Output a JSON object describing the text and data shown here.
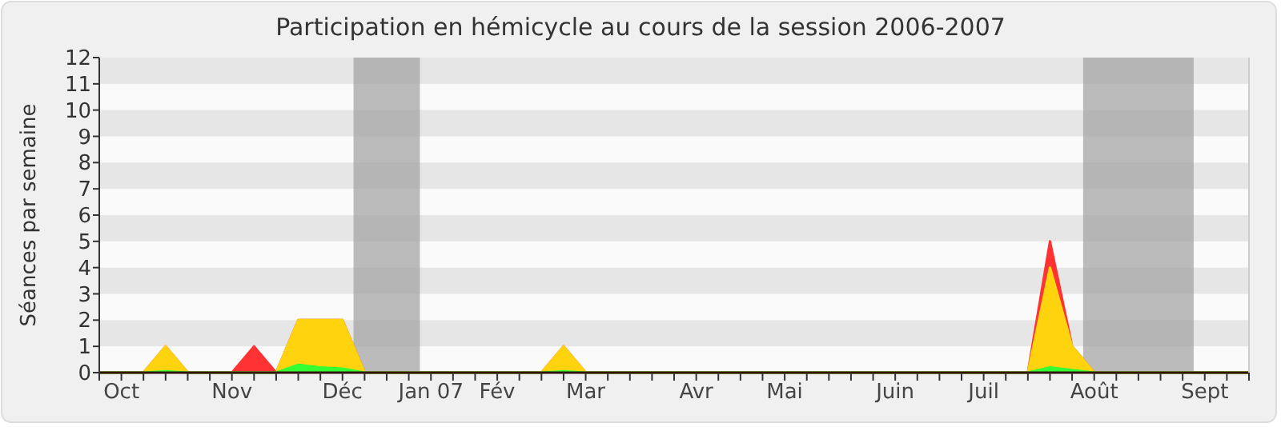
{
  "chart_data": {
    "type": "area",
    "title": "Participation en hémicycle au cours de la session 2006-2007",
    "ylabel": "Séances par semaine",
    "categories": [
      null,
      "Oct",
      null,
      null,
      null,
      null,
      "Nov",
      null,
      null,
      null,
      null,
      "Déc",
      null,
      null,
      null,
      "Jan 07",
      null,
      null,
      "Fév",
      null,
      null,
      null,
      "Mar",
      null,
      null,
      null,
      null,
      "Avr",
      null,
      null,
      null,
      "Mai",
      null,
      null,
      null,
      null,
      "Juin",
      null,
      null,
      null,
      "Juil",
      null,
      null,
      null,
      null,
      "Août",
      null,
      null,
      null,
      null,
      "Sept",
      null,
      null
    ],
    "series": [
      {
        "color": "#ff3333",
        "values": [
          0,
          0,
          0,
          1,
          0,
          0,
          0,
          1,
          0,
          2,
          2,
          2,
          0,
          0,
          0,
          0,
          0,
          0,
          0,
          0,
          0,
          1,
          0,
          0,
          0,
          0,
          0,
          0,
          0,
          0,
          0,
          0,
          0,
          0,
          0,
          0,
          0,
          0,
          0,
          0,
          0,
          0,
          0,
          5,
          1,
          0,
          0,
          0,
          0,
          0,
          0,
          0,
          0
        ]
      },
      {
        "color": "#ffd40f",
        "values": [
          0,
          0,
          0,
          1,
          0,
          0,
          0,
          0,
          0,
          2,
          2,
          2,
          0,
          0,
          0,
          0,
          0,
          0,
          0,
          0,
          0,
          1,
          0,
          0,
          0,
          0,
          0,
          0,
          0,
          0,
          0,
          0,
          0,
          0,
          0,
          0,
          0,
          0,
          0,
          0,
          0,
          0,
          0,
          4,
          1,
          0,
          0,
          0,
          0,
          0,
          0,
          0,
          0
        ]
      },
      {
        "color": "#33ff33",
        "values": [
          0,
          0,
          0,
          0.05,
          0,
          0,
          0,
          0,
          0,
          0.3,
          0.2,
          0.15,
          0,
          0,
          0,
          0,
          0,
          0,
          0,
          0,
          0,
          0.05,
          0,
          0,
          0,
          0,
          0,
          0,
          0,
          0,
          0,
          0,
          0,
          0,
          0,
          0,
          0,
          0,
          0,
          0,
          0,
          0,
          0,
          0.2,
          0.1,
          0,
          0,
          0,
          0,
          0,
          0,
          0,
          0
        ]
      }
    ],
    "ylim": [
      0,
      12
    ],
    "yticks": [
      0,
      1,
      2,
      3,
      4,
      5,
      6,
      7,
      8,
      9,
      10,
      11,
      12
    ]
  }
}
